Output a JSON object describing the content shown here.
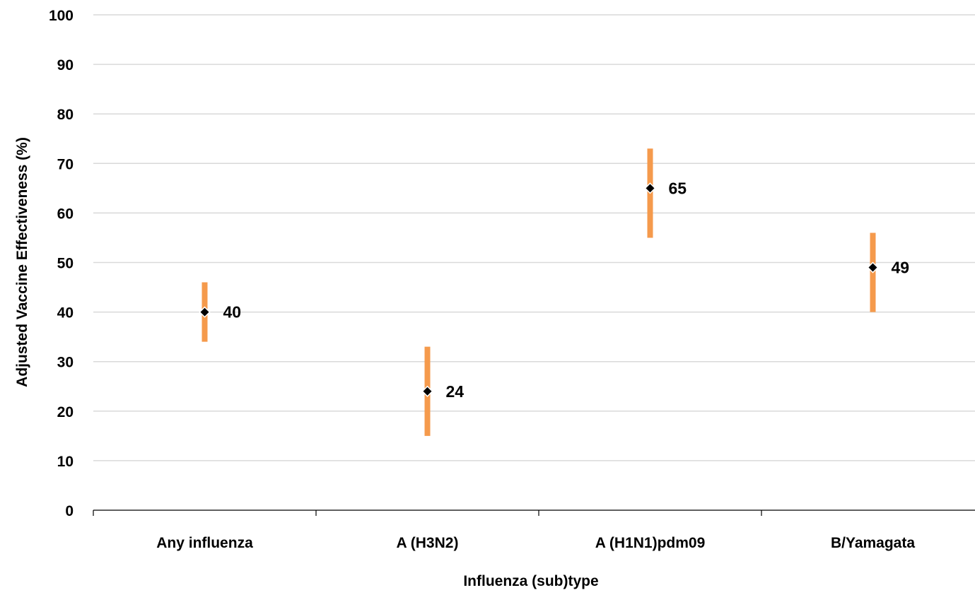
{
  "chart_data": {
    "type": "scatter",
    "title": "",
    "xlabel": "Influenza (sub)type",
    "ylabel": "Adjusted Vaccine Effectiveness (%)",
    "ylim": [
      0,
      100
    ],
    "y_ticks": [
      "0",
      "10",
      "20",
      "30",
      "40",
      "50",
      "60",
      "70",
      "80",
      "90",
      "100"
    ],
    "grid": true,
    "categories": [
      "Any influenza",
      "A (H3N2)",
      "A (H1N1)pdm09",
      "B/Yamagata"
    ],
    "series": [
      {
        "values": [
          40,
          24,
          65,
          49
        ],
        "ci_lower": [
          34,
          15,
          55,
          40
        ],
        "ci_upper": [
          46,
          33,
          73,
          56
        ],
        "data_labels": [
          "40",
          "24",
          "65",
          "49"
        ]
      }
    ],
    "colors": {
      "error_bar": "#f59a4c",
      "marker": "#000000",
      "gridline": "#d9d9d9",
      "axis": "#000000"
    }
  }
}
